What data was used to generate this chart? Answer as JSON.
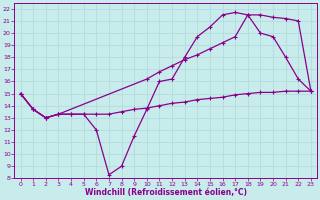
{
  "xlabel": "Windchill (Refroidissement éolien,°C)",
  "bg_color": "#c8ecec",
  "line_color": "#8b008b",
  "grid_color": "#b0d8d8",
  "xlim": [
    -0.5,
    23.5
  ],
  "ylim": [
    8,
    22.5
  ],
  "xticks": [
    0,
    1,
    2,
    3,
    4,
    5,
    6,
    7,
    8,
    9,
    10,
    11,
    12,
    13,
    14,
    15,
    16,
    17,
    18,
    19,
    20,
    21,
    22,
    23
  ],
  "yticks": [
    8,
    9,
    10,
    11,
    12,
    13,
    14,
    15,
    16,
    17,
    18,
    19,
    20,
    21,
    22
  ],
  "line1_x": [
    0,
    1,
    2,
    3,
    4,
    5,
    6,
    7,
    8,
    9,
    10,
    11,
    12,
    13,
    14,
    15,
    16,
    17,
    18,
    19,
    20,
    21,
    22,
    23
  ],
  "line1_y": [
    15.0,
    13.7,
    13.0,
    13.3,
    13.3,
    13.3,
    12.0,
    8.3,
    9.0,
    11.5,
    13.7,
    16.0,
    16.2,
    18.0,
    19.7,
    20.5,
    21.5,
    21.7,
    21.5,
    20.0,
    19.7,
    18.0,
    16.2,
    15.2
  ],
  "line2_x": [
    0,
    1,
    2,
    3,
    10,
    11,
    12,
    13,
    14,
    15,
    16,
    17,
    18,
    19,
    20,
    21,
    22,
    23
  ],
  "line2_y": [
    15.0,
    13.7,
    13.0,
    13.3,
    16.2,
    16.8,
    17.3,
    17.8,
    18.2,
    18.7,
    19.2,
    19.7,
    21.5,
    21.5,
    21.3,
    21.2,
    21.0,
    15.2
  ],
  "line3_x": [
    0,
    1,
    2,
    3,
    4,
    5,
    6,
    7,
    8,
    9,
    10,
    11,
    12,
    13,
    14,
    15,
    16,
    17,
    18,
    19,
    20,
    21,
    22,
    23
  ],
  "line3_y": [
    15.0,
    13.7,
    13.0,
    13.3,
    13.3,
    13.3,
    13.3,
    13.3,
    13.5,
    13.7,
    13.8,
    14.0,
    14.2,
    14.3,
    14.5,
    14.6,
    14.7,
    14.9,
    15.0,
    15.1,
    15.1,
    15.2,
    15.2,
    15.2
  ],
  "marker": "+",
  "lw": 0.9,
  "ms": 3.5
}
